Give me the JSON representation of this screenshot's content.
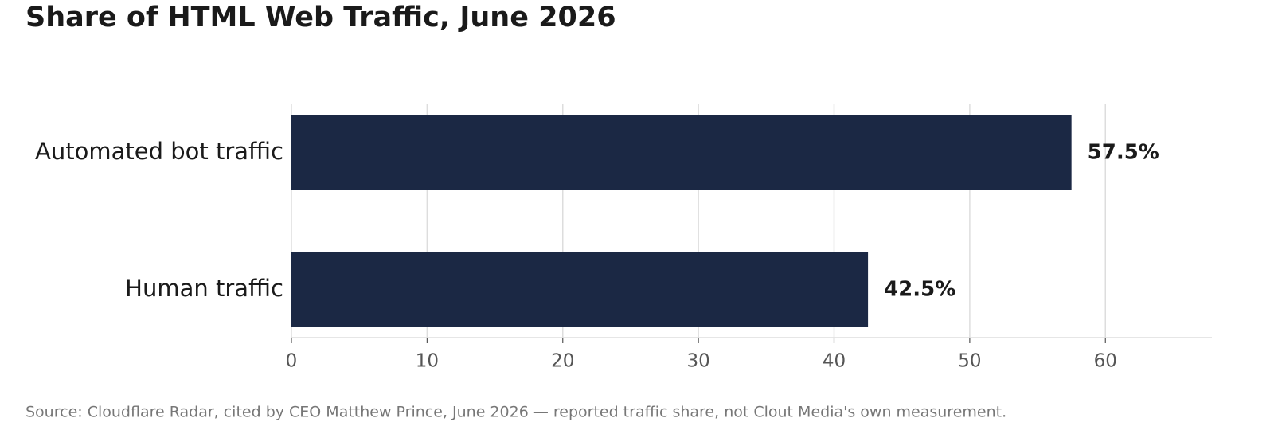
{
  "chart_data": {
    "type": "barh",
    "title": "Share of HTML Web Traffic, June 2026",
    "categories": [
      "Automated bot traffic",
      "Human traffic"
    ],
    "values": [
      57.5,
      42.5
    ],
    "value_labels": [
      "57.5%",
      "42.5%"
    ],
    "color": "#1b2844",
    "xlim": [
      0,
      67.85
    ],
    "xticks": [
      0,
      10,
      20,
      30,
      40,
      50,
      60
    ],
    "grid": true,
    "source": "Source: Cloudflare Radar, cited by CEO Matthew Prince, June 2026 — reported traffic share, not Clout Media's own measurement."
  }
}
